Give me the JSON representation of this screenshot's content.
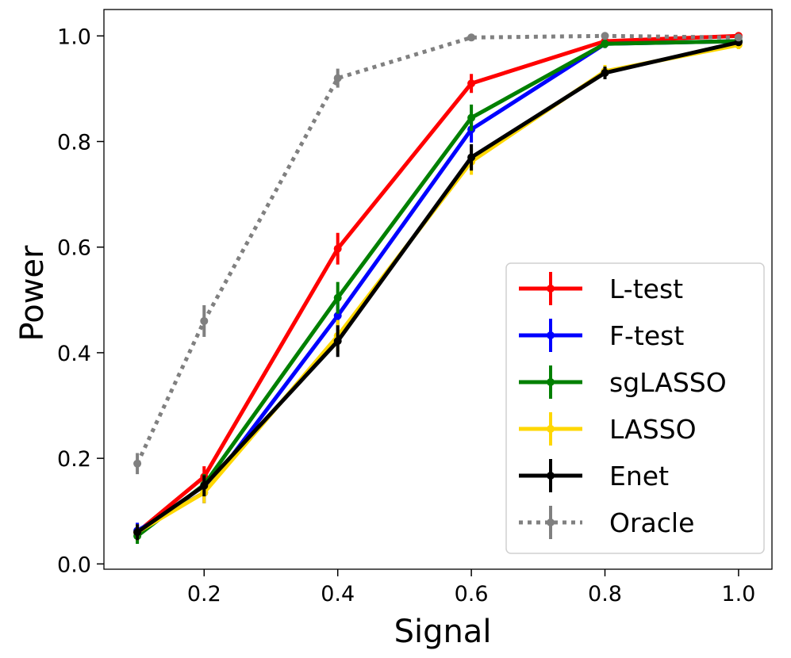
{
  "chart_data": {
    "type": "line",
    "title": "",
    "xlabel": "Signal",
    "ylabel": "Power",
    "xlim": [
      0.05,
      1.05
    ],
    "ylim": [
      -0.01,
      1.05
    ],
    "xticks": [
      0.2,
      0.4,
      0.6,
      0.8,
      1.0
    ],
    "xtick_labels": [
      "0.2",
      "0.4",
      "0.6",
      "0.8",
      "1.0"
    ],
    "yticks": [
      0.0,
      0.2,
      0.4,
      0.6,
      0.8,
      1.0
    ],
    "ytick_labels": [
      "0.0",
      "0.2",
      "0.4",
      "0.6",
      "0.8",
      "1.0"
    ],
    "grid": false,
    "legend_position": "lower-right",
    "x": [
      0.1,
      0.2,
      0.4,
      0.6,
      0.8,
      1.0
    ],
    "series": [
      {
        "name": "L-test",
        "color": "#ff0000",
        "style": "solid",
        "values": [
          0.06,
          0.165,
          0.597,
          0.91,
          0.99,
          1.0
        ],
        "errors": [
          0.015,
          0.02,
          0.03,
          0.018,
          0.008,
          0.004
        ]
      },
      {
        "name": "F-test",
        "color": "#0000ff",
        "style": "solid",
        "values": [
          0.063,
          0.135,
          0.47,
          0.823,
          0.985,
          0.99
        ],
        "errors": [
          0.015,
          0.02,
          0.03,
          0.025,
          0.008,
          0.006
        ]
      },
      {
        "name": "sgLASSO",
        "color": "#008000",
        "style": "solid",
        "values": [
          0.053,
          0.15,
          0.504,
          0.845,
          0.985,
          0.99
        ],
        "errors": [
          0.015,
          0.02,
          0.03,
          0.025,
          0.008,
          0.006
        ]
      },
      {
        "name": "LASSO",
        "color": "#ffd700",
        "style": "solid",
        "values": [
          0.06,
          0.135,
          0.432,
          0.762,
          0.933,
          0.983
        ],
        "errors": [
          0.015,
          0.02,
          0.03,
          0.025,
          0.012,
          0.008
        ]
      },
      {
        "name": "Enet",
        "color": "#000000",
        "style": "solid",
        "values": [
          0.06,
          0.148,
          0.422,
          0.77,
          0.93,
          0.988
        ],
        "errors": [
          0.015,
          0.02,
          0.03,
          0.025,
          0.012,
          0.006
        ]
      },
      {
        "name": "Oracle",
        "color": "#808080",
        "style": "dotted",
        "values": [
          0.19,
          0.46,
          0.92,
          0.997,
          1.0,
          0.997
        ],
        "errors": [
          0.02,
          0.03,
          0.018,
          0.004,
          0.002,
          0.003
        ]
      }
    ]
  }
}
